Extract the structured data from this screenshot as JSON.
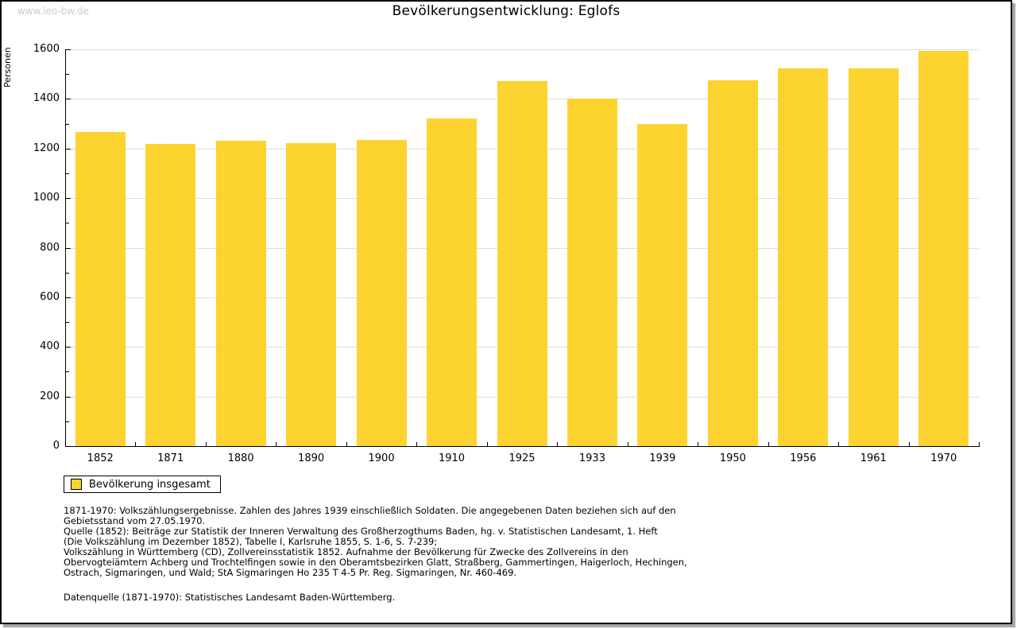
{
  "watermark": "www.leo-bw.de",
  "chart_data": {
    "type": "bar",
    "title": "Bevölkerungsentwicklung: Eglofs",
    "xlabel": "",
    "ylabel": "Personen",
    "categories": [
      "1852",
      "1871",
      "1880",
      "1890",
      "1900",
      "1910",
      "1925",
      "1933",
      "1939",
      "1950",
      "1956",
      "1961",
      "1970"
    ],
    "values": [
      1266,
      1220,
      1232,
      1222,
      1235,
      1320,
      1471,
      1400,
      1300,
      1476,
      1522,
      1522,
      1595
    ],
    "ylim": [
      0,
      1600
    ],
    "ytick_step": 200,
    "ytick_minor_step": 100,
    "grid": true,
    "legend_position": "bottom-left",
    "bar_color": "#FCD32F",
    "grid_color": "#DDDDDD",
    "axis_color": "#000000"
  },
  "legend": {
    "label": "Bevölkerung insgesamt"
  },
  "footnotes": [
    "1871-1970: Volkszählungsergebnisse. Zahlen des Jahres 1939 einschließlich Soldaten. Die angegebenen Daten beziehen sich auf den",
    "Gebietsstand vom 27.05.1970.",
    "Quelle (1852): Beiträge zur Statistik der Inneren Verwaltung des Großherzogthums Baden, hg. v. Statistischen Landesamt, 1. Heft",
    "(Die Volkszählung im Dezember 1852), Tabelle I, Karlsruhe 1855, S. 1-6, S. 7-239;",
    "Volkszählung in Württemberg (CD), Zollvereinsstatistik 1852. Aufnahme der Bevölkerung für Zwecke des Zollvereins in den",
    "Obervogteiämtern Achberg und Trochtelfingen sowie in den Oberamtsbezirken Glatt, Straßberg, Gammertingen, Haigerloch, Hechingen,",
    "Ostrach, Sigmaringen, und Wald; StA Sigmaringen Ho 235 T 4-5 Pr. Reg. Sigmaringen, Nr. 460-469."
  ],
  "datasource": "Datenquelle (1871-1970): Statistisches Landesamt Baden-Württemberg."
}
